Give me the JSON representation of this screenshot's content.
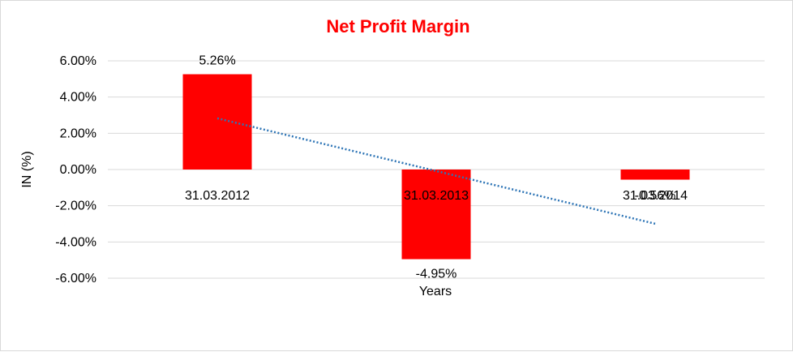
{
  "colors": {
    "title": "#ff0000",
    "bar": "#ff0000",
    "trendline": "#2e75b6",
    "grid": "#d9d9d9"
  },
  "chart_data": {
    "type": "bar",
    "title": "Net Profit Margin",
    "xlabel": "Years",
    "ylabel": "IN (%)",
    "categories": [
      "31.03.2012",
      "31.03.2013",
      "31.03.2014"
    ],
    "values": [
      5.26,
      -4.95,
      -0.56
    ],
    "data_labels": [
      "5.26%",
      "-4.95%",
      "-0.56%"
    ],
    "ylim": [
      -6,
      6
    ],
    "yticks": [
      6,
      4,
      2,
      0,
      -2,
      -4,
      -6
    ],
    "ytick_labels": [
      "6.00%",
      "4.00%",
      "2.00%",
      "0.00%",
      "-2.00%",
      "-4.00%",
      "-6.00%"
    ],
    "grid": true,
    "legend": "none",
    "trendline": {
      "type": "linear",
      "style": "dotted"
    }
  }
}
